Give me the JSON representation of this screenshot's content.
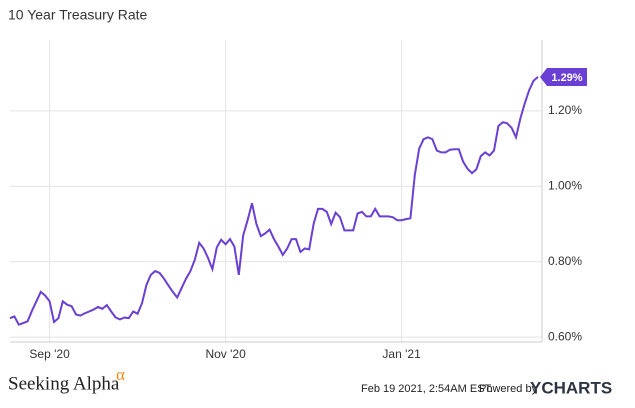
{
  "chart_data": {
    "type": "line",
    "title": "10 Year Treasury Rate",
    "categories": [
      null,
      null,
      null,
      null,
      null,
      null,
      null,
      null,
      null,
      "Sep '20",
      null,
      null,
      null,
      null,
      null,
      null,
      null,
      null,
      null,
      null,
      null,
      null,
      null,
      null,
      null,
      null,
      null,
      null,
      null,
      null,
      null,
      null,
      null,
      null,
      null,
      null,
      null,
      null,
      null,
      null,
      null,
      null,
      null,
      null,
      null,
      null,
      null,
      null,
      null,
      "Nov '20",
      null,
      null,
      null,
      null,
      null,
      null,
      null,
      null,
      null,
      null,
      null,
      null,
      null,
      null,
      null,
      null,
      null,
      null,
      null,
      null,
      null,
      null,
      null,
      null,
      null,
      null,
      null,
      null,
      null,
      null,
      null,
      null,
      null,
      null,
      null,
      null,
      null,
      null,
      null,
      "Jan '21",
      null,
      null,
      null,
      null,
      null,
      null,
      null,
      null,
      null,
      null,
      null,
      null,
      null,
      null,
      null,
      null,
      null,
      null,
      null,
      null,
      null,
      null,
      null,
      null,
      null,
      null,
      null,
      null,
      null,
      null,
      null
    ],
    "series": [
      {
        "name": "10 Year Treasury Rate",
        "color": "#6a3fd3",
        "values": [
          0.65,
          0.655,
          0.633,
          0.637,
          0.642,
          0.67,
          0.695,
          0.72,
          0.71,
          0.695,
          0.64,
          0.65,
          0.695,
          0.686,
          0.682,
          0.66,
          0.657,
          0.663,
          0.668,
          0.673,
          0.68,
          0.675,
          0.685,
          0.668,
          0.652,
          0.647,
          0.652,
          0.65,
          0.668,
          0.662,
          0.69,
          0.738,
          0.765,
          0.775,
          0.77,
          0.755,
          0.737,
          0.72,
          0.705,
          0.73,
          0.755,
          0.775,
          0.805,
          0.85,
          0.835,
          0.81,
          0.78,
          0.838,
          0.858,
          0.846,
          0.86,
          0.84,
          0.765,
          0.87,
          0.91,
          0.955,
          0.9,
          0.868,
          0.875,
          0.885,
          0.86,
          0.84,
          0.818,
          0.835,
          0.86,
          0.86,
          0.826,
          0.835,
          0.833,
          0.9,
          0.94,
          0.94,
          0.932,
          0.9,
          0.93,
          0.918,
          0.883,
          0.883,
          0.883,
          0.928,
          0.932,
          0.92,
          0.92,
          0.94,
          0.92,
          0.92,
          0.92,
          0.918,
          0.91,
          0.91,
          0.913,
          0.915,
          1.03,
          1.1,
          1.125,
          1.13,
          1.125,
          1.095,
          1.09,
          1.09,
          1.097,
          1.098,
          1.098,
          1.065,
          1.046,
          1.035,
          1.045,
          1.08,
          1.09,
          1.082,
          1.095,
          1.16,
          1.17,
          1.167,
          1.155,
          1.13,
          1.18,
          1.22,
          1.255,
          1.28,
          1.29
        ],
        "value_labels": [
          null,
          null,
          null,
          null,
          null,
          null,
          null,
          null,
          null,
          null,
          null,
          null,
          null,
          null,
          null,
          null,
          null,
          null,
          null,
          null,
          null,
          null,
          null,
          null,
          null,
          null,
          null,
          null,
          null,
          null,
          null,
          null,
          null,
          null,
          null,
          null,
          null,
          null,
          null,
          null,
          null,
          null,
          null,
          null,
          null,
          null,
          null,
          null,
          null,
          null,
          null,
          null,
          null,
          null,
          null,
          null,
          null,
          null,
          null,
          null,
          null,
          null,
          null,
          null,
          null,
          null,
          null,
          null,
          null,
          null,
          null,
          null,
          null,
          null,
          null,
          null,
          null,
          null,
          null,
          null,
          null,
          null,
          null,
          null,
          null,
          null,
          null,
          null,
          null,
          null,
          null,
          null,
          null,
          null,
          null,
          null,
          null,
          null,
          null,
          null,
          null,
          null,
          null,
          null,
          null,
          null,
          null,
          null,
          null,
          null,
          null,
          null,
          null,
          null,
          null,
          null,
          null,
          null,
          null,
          null,
          "1.29%"
        ]
      }
    ],
    "ylim": [
      0.587,
      1.388
    ],
    "yticks": [
      {
        "value": 0.6,
        "label": "0.60%"
      },
      {
        "value": 0.8,
        "label": "0.80%"
      },
      {
        "value": 1.0,
        "label": "1.00%"
      },
      {
        "value": 1.2,
        "label": "1.20%"
      }
    ],
    "grid": true
  },
  "footer": {
    "logo": "Seeking Alpha",
    "logo_mark": "α",
    "timestamp": "Feb 19 2021, 2:54AM EST.",
    "powered_by": "Powered by",
    "brand": "YCHARTS"
  }
}
